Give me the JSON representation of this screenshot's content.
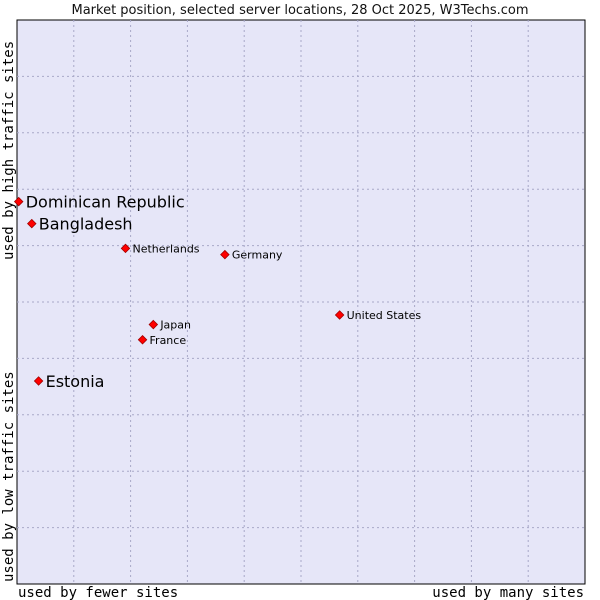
{
  "chart_data": {
    "type": "scatter",
    "title": "Market position, selected server locations, 28 Oct 2025, W3Techs.com",
    "x_axis": {
      "left_label": "used by fewer sites",
      "right_label": "used by many sites",
      "range": [
        0,
        100
      ]
    },
    "y_axis": {
      "bottom_label": "used by low traffic sites",
      "top_label": "used by high traffic sites",
      "range": [
        0,
        100
      ]
    },
    "grid": true,
    "colors": {
      "plot_background": "#e6e6f8",
      "grid": "#a8a8c8",
      "point": "#ff0000",
      "point_outline": "#a00000"
    },
    "points": [
      {
        "name": "Dominican Republic",
        "x": 0.3,
        "y": 67.8,
        "emphasis": true
      },
      {
        "name": "Bangladesh",
        "x": 2.6,
        "y": 63.9,
        "emphasis": true
      },
      {
        "name": "Netherlands",
        "x": 19.1,
        "y": 59.5,
        "emphasis": false
      },
      {
        "name": "Germany",
        "x": 36.6,
        "y": 58.4,
        "emphasis": false
      },
      {
        "name": "United States",
        "x": 56.8,
        "y": 47.7,
        "emphasis": false
      },
      {
        "name": "Japan",
        "x": 24.0,
        "y": 46.0,
        "emphasis": false
      },
      {
        "name": "France",
        "x": 22.1,
        "y": 43.3,
        "emphasis": false
      },
      {
        "name": "Estonia",
        "x": 3.8,
        "y": 36.0,
        "emphasis": true
      }
    ]
  }
}
